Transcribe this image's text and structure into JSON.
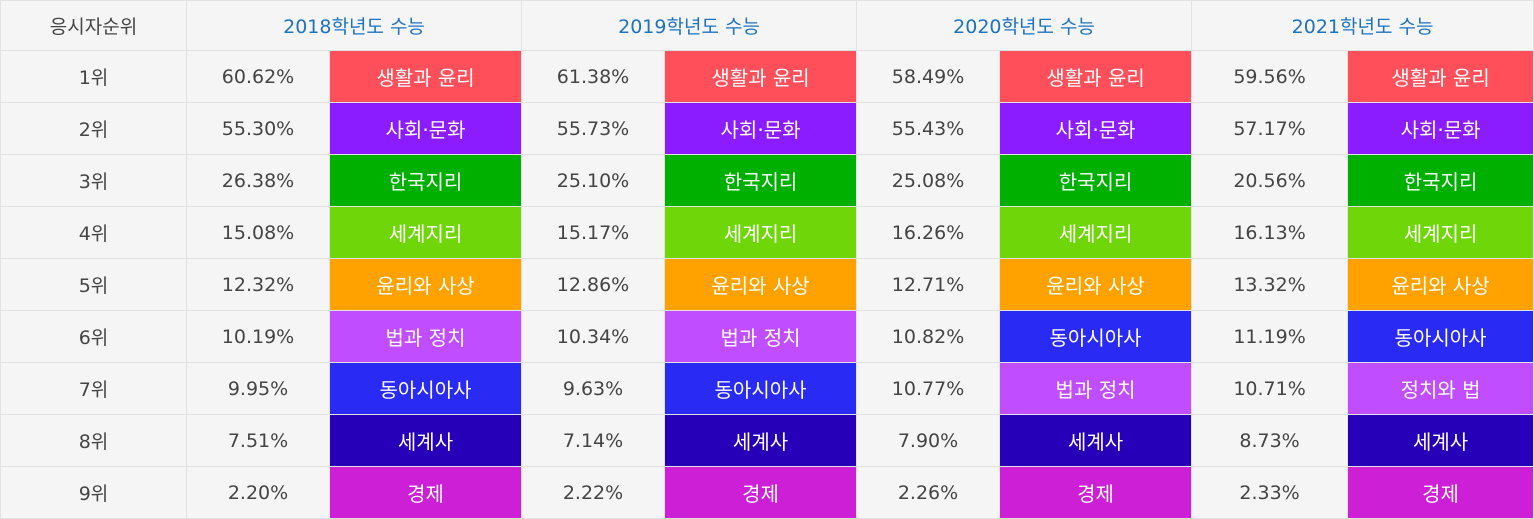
{
  "header": {
    "rank_label": "응시자순위",
    "years": [
      "2018학년도 수능",
      "2019학년도 수능",
      "2020학년도 수능",
      "2021학년도 수능"
    ]
  },
  "subject_colors": {
    "생활과 윤리": "#ff4f5a",
    "사회·문화": "#8a1cff",
    "한국지리": "#00b000",
    "세계지리": "#6fd60a",
    "윤리와 사상": "#ffa200",
    "법과 정치": "#c04dff",
    "정치와 법": "#c04dff",
    "동아시아사": "#2a2af5",
    "세계사": "#2600b8",
    "경제": "#cc1fd6"
  },
  "rows": [
    {
      "rank": "1위",
      "cells": [
        {
          "pct": "60.62%",
          "subject": "생활과 윤리"
        },
        {
          "pct": "61.38%",
          "subject": "생활과 윤리"
        },
        {
          "pct": "58.49%",
          "subject": "생활과 윤리"
        },
        {
          "pct": "59.56%",
          "subject": "생활과 윤리"
        }
      ]
    },
    {
      "rank": "2위",
      "cells": [
        {
          "pct": "55.30%",
          "subject": "사회·문화"
        },
        {
          "pct": "55.73%",
          "subject": "사회·문화"
        },
        {
          "pct": "55.43%",
          "subject": "사회·문화"
        },
        {
          "pct": "57.17%",
          "subject": "사회·문화"
        }
      ]
    },
    {
      "rank": "3위",
      "cells": [
        {
          "pct": "26.38%",
          "subject": "한국지리"
        },
        {
          "pct": "25.10%",
          "subject": "한국지리"
        },
        {
          "pct": "25.08%",
          "subject": "한국지리"
        },
        {
          "pct": "20.56%",
          "subject": "한국지리"
        }
      ]
    },
    {
      "rank": "4위",
      "cells": [
        {
          "pct": "15.08%",
          "subject": "세계지리"
        },
        {
          "pct": "15.17%",
          "subject": "세계지리"
        },
        {
          "pct": "16.26%",
          "subject": "세계지리"
        },
        {
          "pct": "16.13%",
          "subject": "세계지리"
        }
      ]
    },
    {
      "rank": "5위",
      "cells": [
        {
          "pct": "12.32%",
          "subject": "윤리와 사상"
        },
        {
          "pct": "12.86%",
          "subject": "윤리와 사상"
        },
        {
          "pct": "12.71%",
          "subject": "윤리와 사상"
        },
        {
          "pct": "13.32%",
          "subject": "윤리와 사상"
        }
      ]
    },
    {
      "rank": "6위",
      "cells": [
        {
          "pct": "10.19%",
          "subject": "법과 정치"
        },
        {
          "pct": "10.34%",
          "subject": "법과 정치"
        },
        {
          "pct": "10.82%",
          "subject": "동아시아사"
        },
        {
          "pct": "11.19%",
          "subject": "동아시아사"
        }
      ]
    },
    {
      "rank": "7위",
      "cells": [
        {
          "pct": "9.95%",
          "subject": "동아시아사"
        },
        {
          "pct": "9.63%",
          "subject": "동아시아사"
        },
        {
          "pct": "10.77%",
          "subject": "법과 정치"
        },
        {
          "pct": "10.71%",
          "subject": "정치와 법"
        }
      ]
    },
    {
      "rank": "8위",
      "cells": [
        {
          "pct": "7.51%",
          "subject": "세계사"
        },
        {
          "pct": "7.14%",
          "subject": "세계사"
        },
        {
          "pct": "7.90%",
          "subject": "세계사"
        },
        {
          "pct": "8.73%",
          "subject": "세계사"
        }
      ]
    },
    {
      "rank": "9위",
      "cells": [
        {
          "pct": "2.20%",
          "subject": "경제"
        },
        {
          "pct": "2.22%",
          "subject": "경제"
        },
        {
          "pct": "2.26%",
          "subject": "경제"
        },
        {
          "pct": "2.33%",
          "subject": "경제"
        }
      ]
    }
  ]
}
